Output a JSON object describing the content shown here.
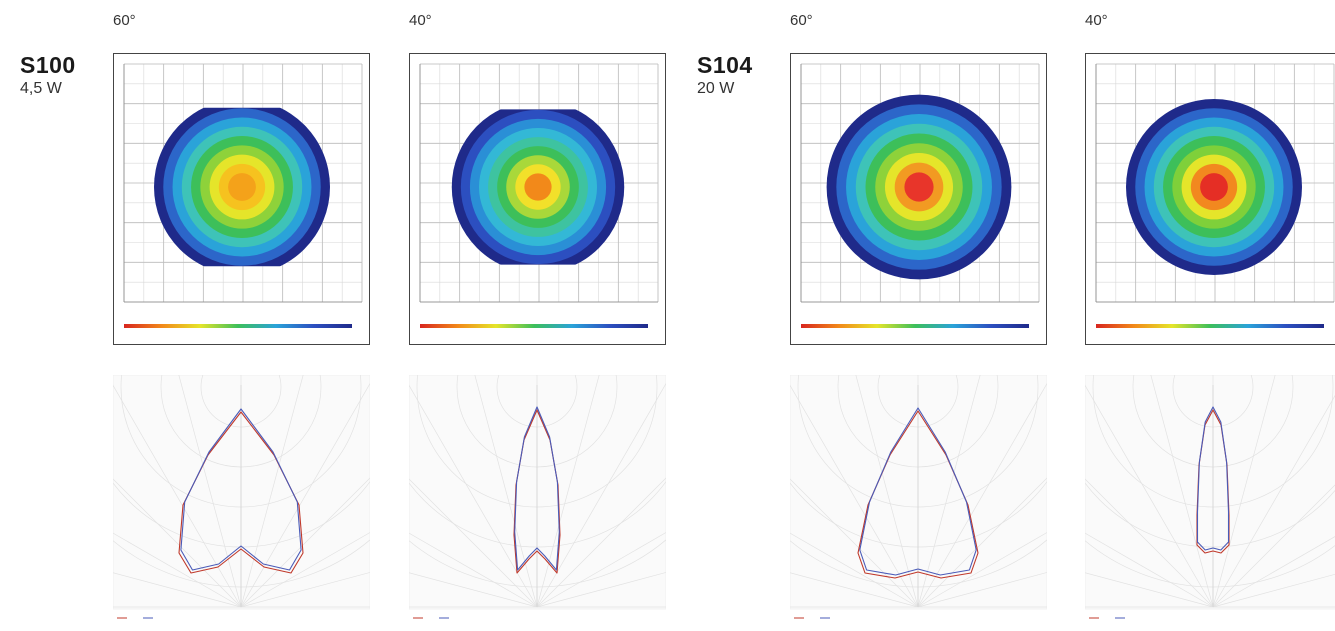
{
  "groups": [
    {
      "model": "S100",
      "power": "4,5 W",
      "variants": [
        {
          "beam": "60°",
          "iso": {
            "core": "#f4a21a",
            "outer": "#1f2a8a",
            "rings": [
              "#1f2a8a",
              "#2c66c9",
              "#2aa3d9",
              "#3ec3b8",
              "#3dbf5a",
              "#8ed23a",
              "#e5e52a",
              "#f6c21f",
              "#f4a21a"
            ]
          }
        },
        {
          "beam": "40°",
          "iso": {
            "core": "#f2891a",
            "outer": "#1f2a8a",
            "rings": [
              "#1f2a8a",
              "#2c4fc0",
              "#2a8fd6",
              "#33b8d6",
              "#3ec3a0",
              "#3dbf5a",
              "#a9d83a",
              "#f2e02a",
              "#f2891a"
            ]
          }
        }
      ]
    },
    {
      "model": "S104",
      "power": "20 W",
      "variants": [
        {
          "beam": "60°",
          "iso": {
            "core": "#e8352a",
            "outer": "#1f2a8a",
            "rings": [
              "#1f2a8a",
              "#2c66c9",
              "#2aa3d9",
              "#3ec3b8",
              "#3dbf5a",
              "#8ed23a",
              "#e5e52a",
              "#f29a22",
              "#e8352a"
            ]
          }
        },
        {
          "beam": "40°",
          "iso": {
            "core": "#e52e25",
            "outer": "#1f2a8a",
            "rings": [
              "#1f2a8a",
              "#2c66c9",
              "#2aa3d9",
              "#3ec3b8",
              "#3dbf5a",
              "#7fd03a",
              "#e5e52a",
              "#f2881f",
              "#e52e25"
            ]
          }
        }
      ]
    }
  ]
}
